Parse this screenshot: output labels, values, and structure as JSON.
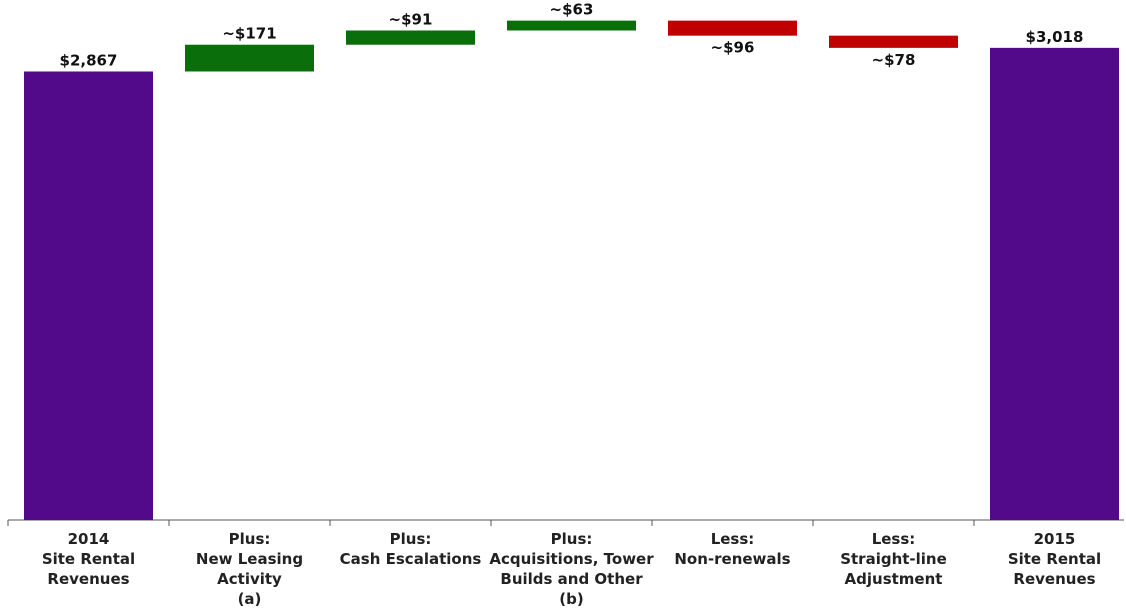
{
  "chart_data": {
    "type": "bar",
    "subtype": "waterfall",
    "categories": [
      [
        "2014",
        "Site Rental",
        "Revenues"
      ],
      [
        "Plus:",
        "New Leasing",
        "Activity",
        "(a)"
      ],
      [
        "Plus:",
        "Cash Escalations"
      ],
      [
        "Plus:",
        "Acquisitions, Tower",
        "Builds and Other",
        "(b)"
      ],
      [
        "Less:",
        "Non-renewals"
      ],
      [
        "Less:",
        "Straight-line",
        "Adjustment"
      ],
      [
        "2015",
        "Site Rental",
        "Revenues"
      ]
    ],
    "steps": [
      {
        "kind": "total",
        "value": 2867,
        "label": "$2,867"
      },
      {
        "kind": "increase",
        "value": 171,
        "label": "~$171"
      },
      {
        "kind": "increase",
        "value": 91,
        "label": "~$91"
      },
      {
        "kind": "increase",
        "value": 63,
        "label": "~$63"
      },
      {
        "kind": "decrease",
        "value": 96,
        "label": "~$96"
      },
      {
        "kind": "decrease",
        "value": 78,
        "label": "~$78"
      },
      {
        "kind": "total",
        "value": 3018,
        "label": "$3,018"
      }
    ],
    "title": "",
    "xlabel": "",
    "ylabel": "",
    "ylim": [
      0,
      3260
    ],
    "grid": false,
    "legend": "none",
    "colors": {
      "total": "#520a8a",
      "increase": "#0a6e0a",
      "decrease": "#c00000",
      "axis": "#555555"
    }
  }
}
